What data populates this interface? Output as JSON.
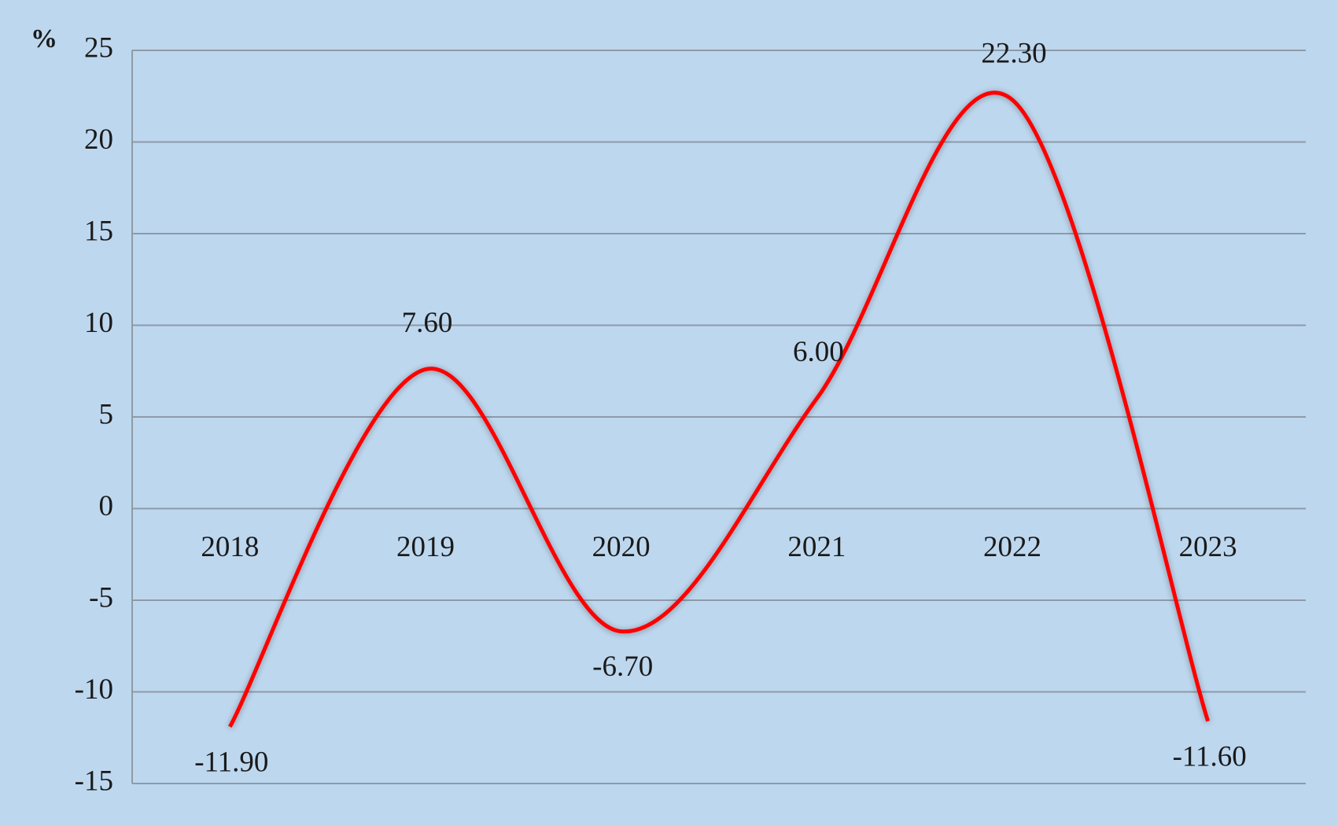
{
  "chart_data": {
    "type": "line",
    "y_axis_label": "%",
    "categories": [
      "2018",
      "2019",
      "2020",
      "2021",
      "2022",
      "2023"
    ],
    "series": [
      {
        "color": "#ff0000",
        "values": [
          -11.9,
          7.6,
          -6.7,
          6.0,
          22.3,
          -11.6
        ],
        "value_labels": [
          "-11.90",
          "7.60",
          "-6.70",
          "6.00",
          "22.30",
          "-11.60"
        ]
      }
    ],
    "ylim": [
      -15,
      25
    ],
    "yticks": [
      -15,
      -10,
      -5,
      0,
      5,
      10,
      15,
      20,
      25
    ],
    "grid": true,
    "smooth": true
  }
}
